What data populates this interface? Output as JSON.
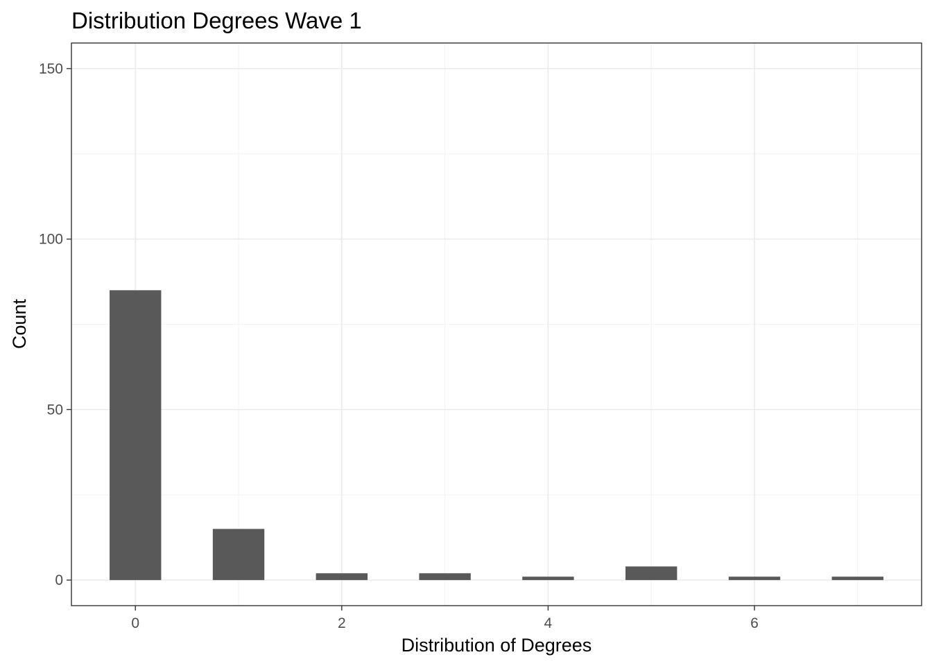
{
  "chart_data": {
    "type": "bar",
    "title": "Distribution Degrees Wave 1",
    "xlabel": "Distribution of Degrees",
    "ylabel": "Count",
    "x": [
      0,
      1,
      2,
      3,
      4,
      5,
      6,
      7
    ],
    "values": [
      85,
      15,
      2,
      2,
      1,
      4,
      1,
      1
    ],
    "xlim": [
      -0.62,
      7.62
    ],
    "ylim": [
      -7.5,
      157.5
    ],
    "x_ticks": [
      0,
      2,
      4,
      6
    ],
    "y_ticks": [
      0,
      50,
      100,
      150
    ],
    "x_tick_labels": [
      "0",
      "2",
      "4",
      "6"
    ],
    "y_tick_labels": [
      "0",
      "50",
      "100",
      "150"
    ],
    "grid": true,
    "bar_color": "#595959",
    "grid_color": "#ebebeb",
    "border_color": "#333333"
  }
}
